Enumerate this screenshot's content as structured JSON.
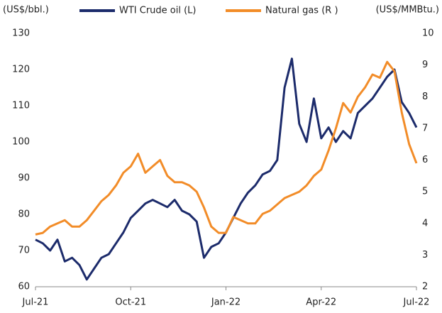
{
  "chart_data": {
    "type": "line",
    "y_label": "(US$/bbl.)",
    "y2_label": "(US$/MMBtu.)",
    "categories": [
      "Jul-21",
      null,
      null,
      null,
      null,
      null,
      null,
      null,
      null,
      null,
      null,
      null,
      null,
      "Oct-21",
      null,
      null,
      null,
      null,
      null,
      null,
      null,
      null,
      null,
      null,
      null,
      null,
      "Jan-22",
      null,
      null,
      null,
      null,
      null,
      null,
      null,
      null,
      null,
      null,
      null,
      null,
      "Apr-22",
      null,
      null,
      null,
      null,
      null,
      null,
      null,
      null,
      null,
      null,
      null,
      null,
      "Jul-22"
    ],
    "series": [
      {
        "name": "WTI Crude oil (L)",
        "color": "#1c2b6b",
        "values": [
          73,
          72,
          70,
          73,
          67,
          68,
          66,
          62,
          65,
          68,
          69,
          72,
          75,
          79,
          81,
          83,
          84,
          83,
          82,
          84,
          81,
          80,
          78,
          68,
          71,
          72,
          75,
          79,
          83,
          86,
          88,
          91,
          92,
          95,
          115,
          123,
          105,
          100,
          112,
          101,
          104,
          100,
          103,
          101,
          108,
          110,
          112,
          115,
          118,
          120,
          111,
          108,
          104
        ]
      },
      {
        "name": "Natural gas (R )",
        "color": "#f28c28",
        "axis": "y2",
        "values": [
          3.65,
          3.7,
          3.9,
          4.0,
          4.1,
          3.9,
          3.9,
          4.1,
          4.4,
          4.7,
          4.9,
          5.2,
          5.6,
          5.8,
          6.2,
          5.6,
          5.8,
          6.0,
          5.5,
          5.3,
          5.3,
          5.2,
          5.0,
          4.5,
          3.9,
          3.7,
          3.7,
          4.2,
          4.1,
          4.0,
          4.0,
          4.3,
          4.4,
          4.6,
          4.8,
          4.9,
          5.0,
          5.2,
          5.5,
          5.7,
          6.3,
          7.0,
          7.8,
          7.5,
          8.0,
          8.3,
          8.7,
          8.6,
          9.1,
          8.8,
          7.5,
          6.5,
          5.9
        ]
      }
    ],
    "ylim": [
      60,
      130
    ],
    "yticks": [
      60,
      70,
      80,
      90,
      100,
      110,
      120,
      130
    ],
    "y2lim": [
      2,
      10
    ],
    "y2ticks": [
      2,
      3,
      4,
      5,
      6,
      7,
      8,
      9,
      10
    ],
    "grid": false
  }
}
